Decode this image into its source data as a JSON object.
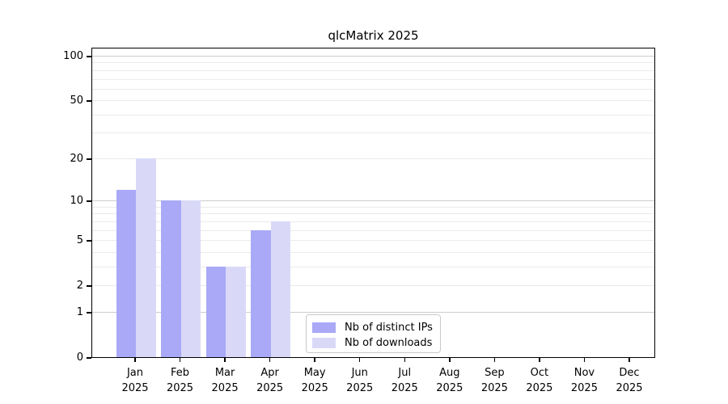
{
  "page": {
    "background": "#ffffff"
  },
  "chart_data": {
    "type": "bar",
    "title": "qlcMatrix 2025",
    "xlabel": "",
    "ylabel": "",
    "y_scale": "log10(1+y)",
    "ylim": [
      0,
      115
    ],
    "y_tick_values": [
      100,
      50,
      20,
      10,
      5,
      2,
      1,
      0
    ],
    "y_tick_labels": [
      "100",
      "50",
      "20",
      "10",
      "5",
      "2",
      "1",
      "0"
    ],
    "grid": {
      "major_values": [
        1,
        10,
        100
      ],
      "minor_values": [
        2,
        3,
        4,
        5,
        6,
        7,
        8,
        9,
        20,
        30,
        40,
        50,
        60,
        70,
        80,
        90
      ],
      "major_color": "#cccccc",
      "minor_color": "#ebebeb"
    },
    "categories": [
      {
        "month": "Jan",
        "year": "2025"
      },
      {
        "month": "Feb",
        "year": "2025"
      },
      {
        "month": "Mar",
        "year": "2025"
      },
      {
        "month": "Apr",
        "year": "2025"
      },
      {
        "month": "May",
        "year": "2025"
      },
      {
        "month": "Jun",
        "year": "2025"
      },
      {
        "month": "Jul",
        "year": "2025"
      },
      {
        "month": "Aug",
        "year": "2025"
      },
      {
        "month": "Sep",
        "year": "2025"
      },
      {
        "month": "Oct",
        "year": "2025"
      },
      {
        "month": "Nov",
        "year": "2025"
      },
      {
        "month": "Dec",
        "year": "2025"
      }
    ],
    "series": [
      {
        "name": "Nb of distinct IPs",
        "color": "#a9a9f7",
        "values": [
          12,
          10,
          3,
          6,
          0,
          0,
          0,
          0,
          0,
          0,
          0,
          0
        ]
      },
      {
        "name": "Nb of downloads",
        "color": "#d9d9f7",
        "values": [
          20,
          10,
          3,
          7,
          0,
          0,
          0,
          0,
          0,
          0,
          0,
          0
        ]
      }
    ],
    "legend_position": "lower center"
  }
}
